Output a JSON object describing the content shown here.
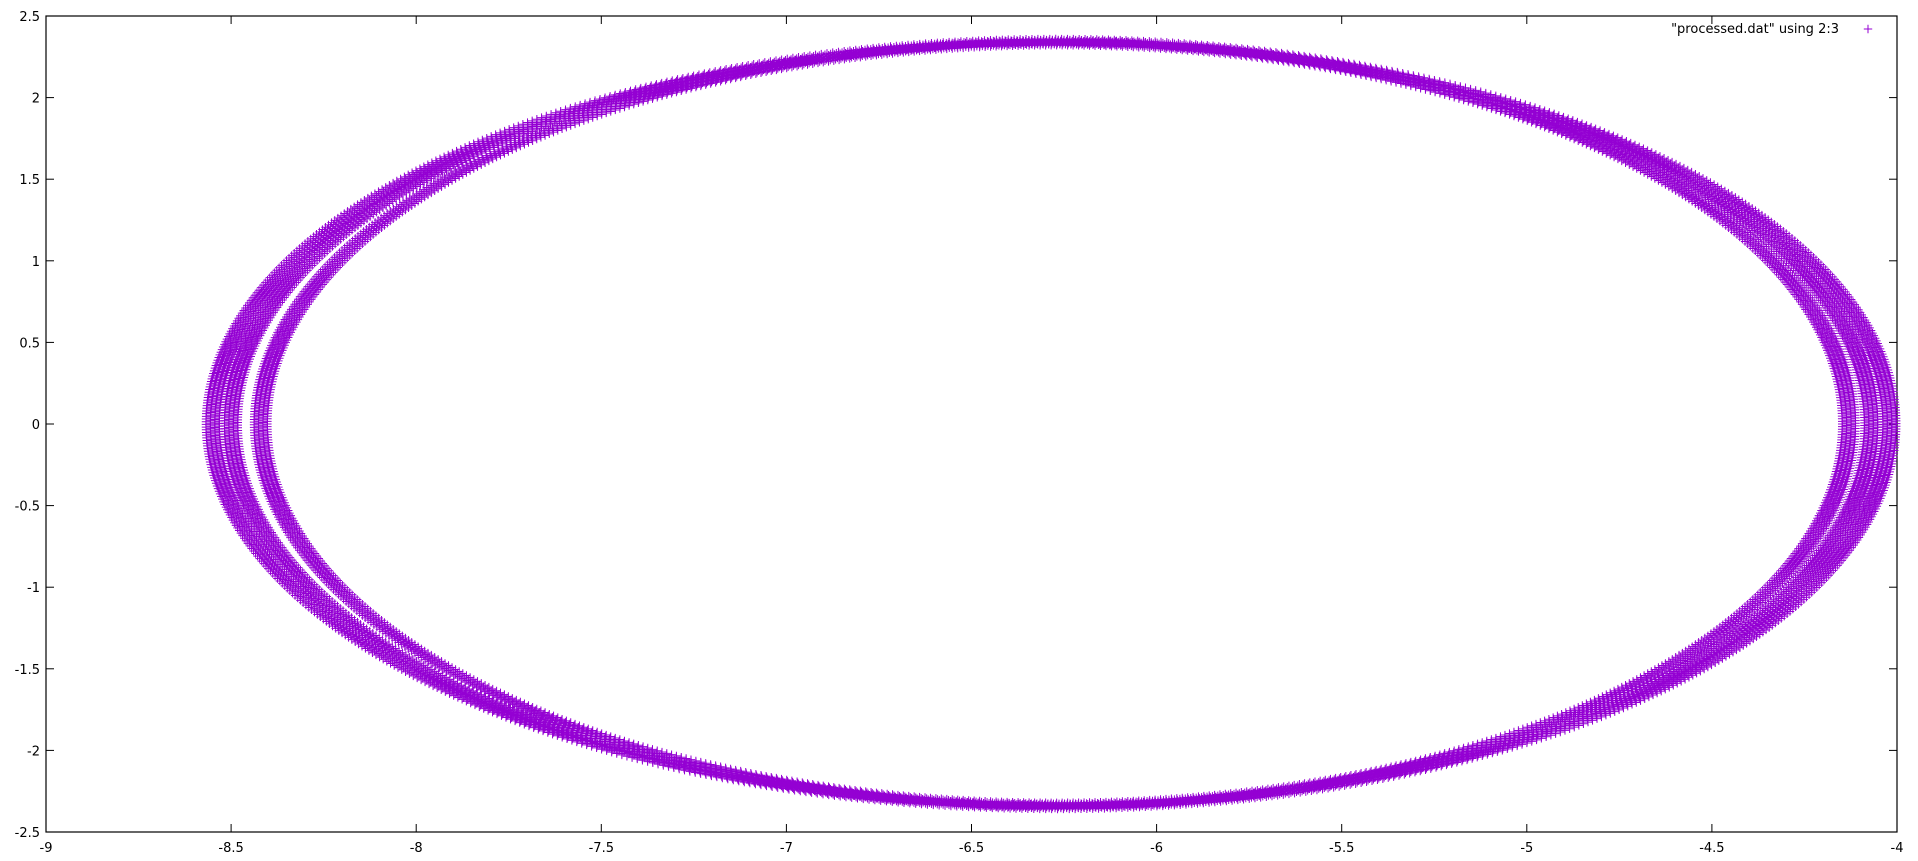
{
  "chart_data": {
    "type": "scatter",
    "title": "",
    "xlabel": "",
    "ylabel": "",
    "xlim": [
      -9,
      -4
    ],
    "ylim": [
      -2.5,
      2.5
    ],
    "x_ticks": [
      "-9",
      "-8.5",
      "-8",
      "-7.5",
      "-7",
      "-6.5",
      "-6",
      "-5.5",
      "-5",
      "-4.5",
      "-4"
    ],
    "y_ticks": [
      "2.5",
      "2",
      "1.5",
      "1",
      "0.5",
      "0",
      "-0.5",
      "-1",
      "-1.5",
      "-2",
      "-2.5"
    ],
    "grid": false,
    "legend_position": "top-right",
    "marker": "plus",
    "color": "#9400d3",
    "series": [
      {
        "name": "\"processed.dat\" using 2:3",
        "shape": "closed elliptical orbits (phase-space trajectory)",
        "bands": [
          {
            "x_min": -8.42,
            "x_max": -4.13,
            "y_max": 2.33
          },
          {
            "x_min": -8.5,
            "x_max": -4.07,
            "y_max": 2.34
          },
          {
            "x_min": -8.55,
            "x_max": -4.02,
            "y_max": 2.35
          }
        ],
        "center_x": -6.27
      }
    ]
  }
}
